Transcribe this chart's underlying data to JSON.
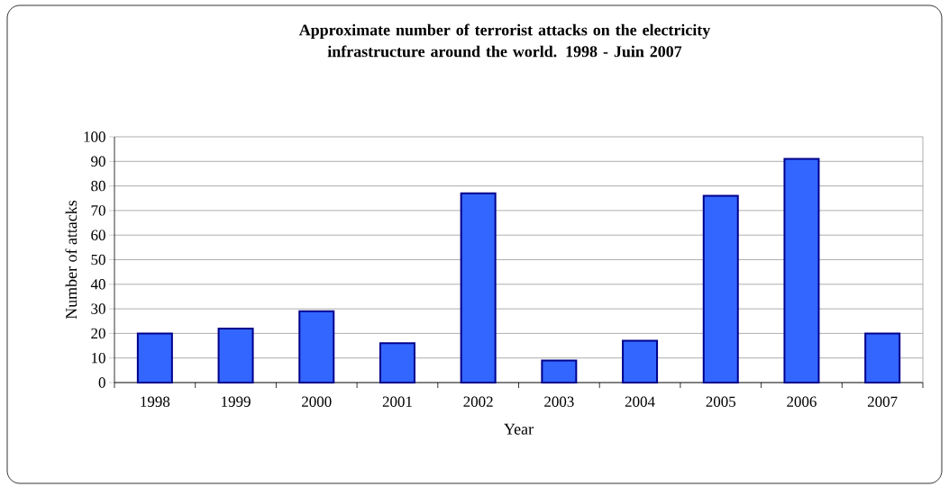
{
  "chart_data": {
    "type": "bar",
    "title": "Approximate number of terrorist attacks on the electricity infrastructure around the world. 1998 - Juin 2007",
    "xlabel": "Year",
    "ylabel": "Number of attacks",
    "categories": [
      "1998",
      "1999",
      "2000",
      "2001",
      "2002",
      "2003",
      "2004",
      "2005",
      "2006",
      "2007"
    ],
    "values": [
      20,
      22,
      29,
      16,
      77,
      9,
      17,
      76,
      91,
      20
    ],
    "color": "#3366ff",
    "ylim": [
      0,
      100
    ],
    "yticks": [
      0,
      10,
      20,
      30,
      40,
      50,
      60,
      70,
      80,
      90,
      100
    ],
    "grid": "y"
  }
}
